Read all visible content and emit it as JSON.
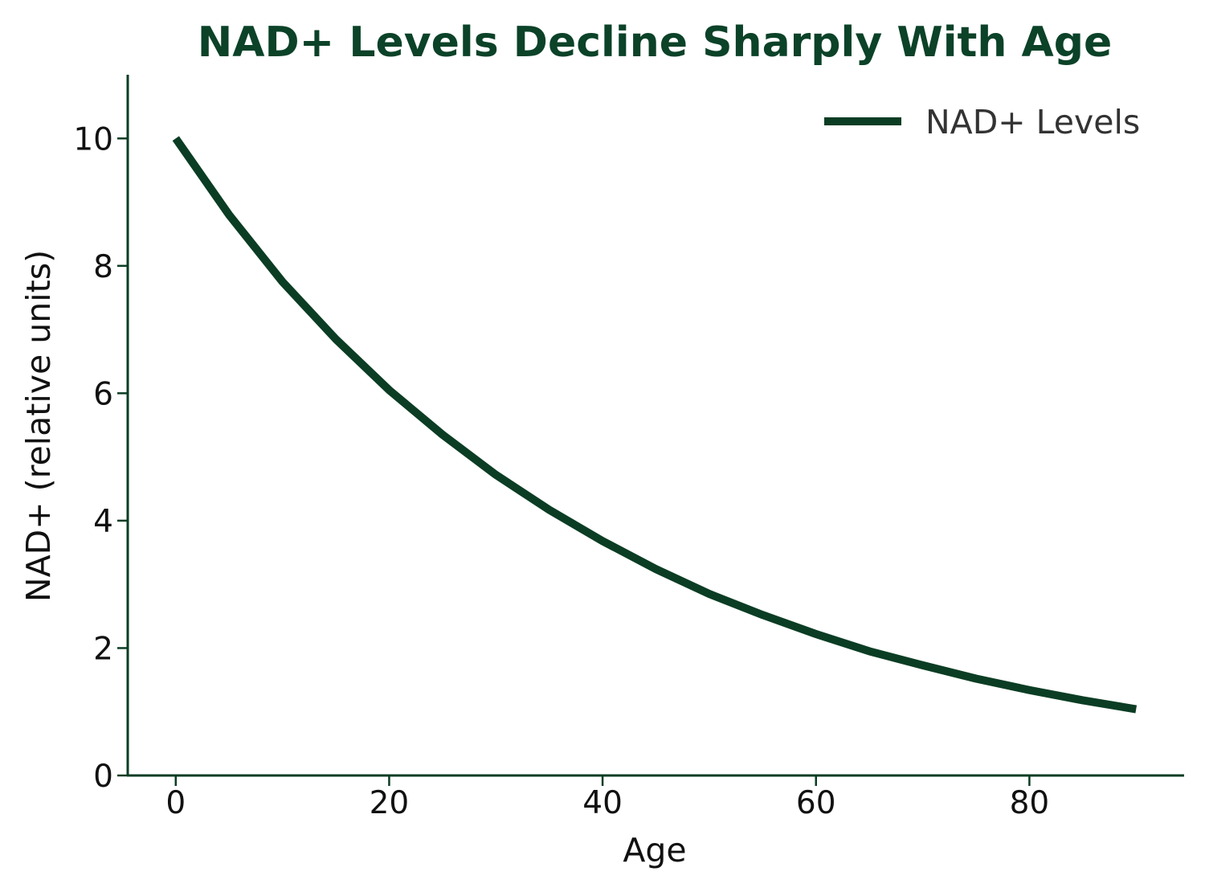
{
  "chart_data": {
    "type": "line",
    "title": "NAD+ Levels Decline Sharply With Age",
    "xlabel": "Age",
    "ylabel": "NAD+ (relative units)",
    "xlim": [
      -4.5,
      94.5
    ],
    "ylim": [
      0,
      11
    ],
    "x_ticks": [
      0,
      20,
      40,
      60,
      80
    ],
    "y_ticks": [
      0,
      2,
      4,
      6,
      8,
      10
    ],
    "grid": false,
    "legend": {
      "placement": "top-right",
      "entries": [
        "NAD+ Levels"
      ]
    },
    "colors": {
      "title": "#0b4228",
      "line": "#0b3d24",
      "axis": "#0b3d24",
      "text": "#111111",
      "legend_text": "#333333"
    },
    "series": [
      {
        "name": "NAD+ Levels",
        "x": [
          0,
          5,
          10,
          15,
          20,
          25,
          30,
          35,
          40,
          45,
          50,
          55,
          60,
          65,
          70,
          75,
          80,
          85,
          90
        ],
        "y": [
          10.0,
          8.8,
          7.75,
          6.85,
          6.05,
          5.35,
          4.72,
          4.17,
          3.68,
          3.24,
          2.85,
          2.52,
          2.22,
          1.95,
          1.73,
          1.52,
          1.34,
          1.18,
          1.04
        ]
      }
    ]
  }
}
